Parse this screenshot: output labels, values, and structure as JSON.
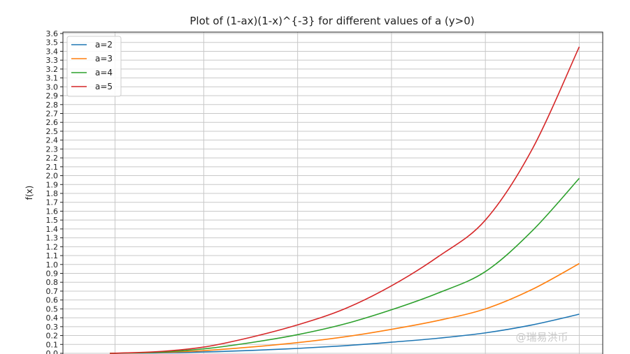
{
  "chart_data": {
    "type": "line",
    "title": "Plot of (1-ax)(1-x)^{-3} for different values of a (y>0)",
    "xlabel": "",
    "ylabel": "f(x)",
    "ylim": [
      0,
      3.6
    ],
    "yticks": [
      "0.0",
      "0.1",
      "0.2",
      "0.3",
      "0.4",
      "0.5",
      "0.6",
      "0.7",
      "0.8",
      "0.9",
      "1.0",
      "1.1",
      "1.2",
      "1.3",
      "1.4",
      "1.5",
      "1.6",
      "1.7",
      "1.8",
      "1.9",
      "2.0",
      "2.1",
      "2.2",
      "2.3",
      "2.4",
      "2.5",
      "2.6",
      "2.7",
      "2.8",
      "2.9",
      "3.0",
      "3.1",
      "3.2",
      "3.3",
      "3.4",
      "3.5",
      "3.6"
    ],
    "grid": true,
    "legend": "top-left",
    "x": [
      0,
      0.1,
      0.2,
      0.3,
      0.4,
      0.5,
      0.6,
      0.7,
      0.8,
      0.9,
      1.0
    ],
    "series": [
      {
        "name": "a=2",
        "color": "#1f77b4",
        "values": [
          0.0,
          0.0045,
          0.015,
          0.032,
          0.055,
          0.085,
          0.125,
          0.17,
          0.23,
          0.32,
          0.44
        ]
      },
      {
        "name": "a=3",
        "color": "#ff7f0e",
        "values": [
          0.0,
          0.01,
          0.03,
          0.07,
          0.12,
          0.185,
          0.27,
          0.37,
          0.5,
          0.72,
          1.01
        ]
      },
      {
        "name": "a=4",
        "color": "#2ca02c",
        "values": [
          0.0,
          0.012,
          0.05,
          0.12,
          0.21,
          0.33,
          0.49,
          0.68,
          0.92,
          1.38,
          1.97
        ]
      },
      {
        "name": "a=5",
        "color": "#d62728",
        "values": [
          0.0,
          0.018,
          0.07,
          0.18,
          0.32,
          0.5,
          0.76,
          1.09,
          1.5,
          2.3,
          3.45
        ]
      }
    ]
  },
  "watermark": "@瑞易洪币"
}
